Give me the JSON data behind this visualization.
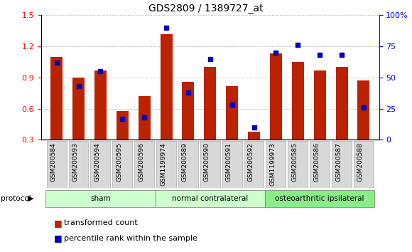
{
  "title": "GDS2809 / 1389727_at",
  "samples": [
    "GSM200584",
    "GSM200593",
    "GSM200594",
    "GSM200595",
    "GSM200596",
    "GSM1199974",
    "GSM200589",
    "GSM200590",
    "GSM200591",
    "GSM200592",
    "GSM1199973",
    "GSM200585",
    "GSM200586",
    "GSM200587",
    "GSM200588"
  ],
  "red_values": [
    1.1,
    0.9,
    0.97,
    0.58,
    0.72,
    1.32,
    0.86,
    1.0,
    0.82,
    0.38,
    1.13,
    1.05,
    0.97,
    1.0,
    0.87
  ],
  "blue_values": [
    62,
    43,
    55,
    17,
    18,
    90,
    38,
    65,
    28,
    10,
    70,
    76,
    68,
    68,
    26
  ],
  "ylim_left": [
    0.3,
    1.5
  ],
  "ylim_right": [
    0,
    100
  ],
  "yticks_left": [
    0.3,
    0.6,
    0.9,
    1.2,
    1.5
  ],
  "yticks_right": [
    0,
    25,
    50,
    75,
    100
  ],
  "yticklabels_right": [
    "0",
    "25",
    "50",
    "75",
    "100%"
  ],
  "bar_color": "#bb2200",
  "blue_color": "#0000bb",
  "grid_color": "#999999",
  "bg_color": "#ffffff",
  "groups": [
    {
      "label": "sham",
      "start": 0,
      "end": 5,
      "color": "#ccffcc"
    },
    {
      "label": "normal contralateral",
      "start": 5,
      "end": 10,
      "color": "#ccffcc"
    },
    {
      "label": "osteoarthritic ipsilateral",
      "start": 10,
      "end": 15,
      "color": "#88ee88"
    }
  ],
  "legend_red": "transformed count",
  "legend_blue": "percentile rank within the sample",
  "bar_width": 0.55,
  "baseline": 0.3
}
